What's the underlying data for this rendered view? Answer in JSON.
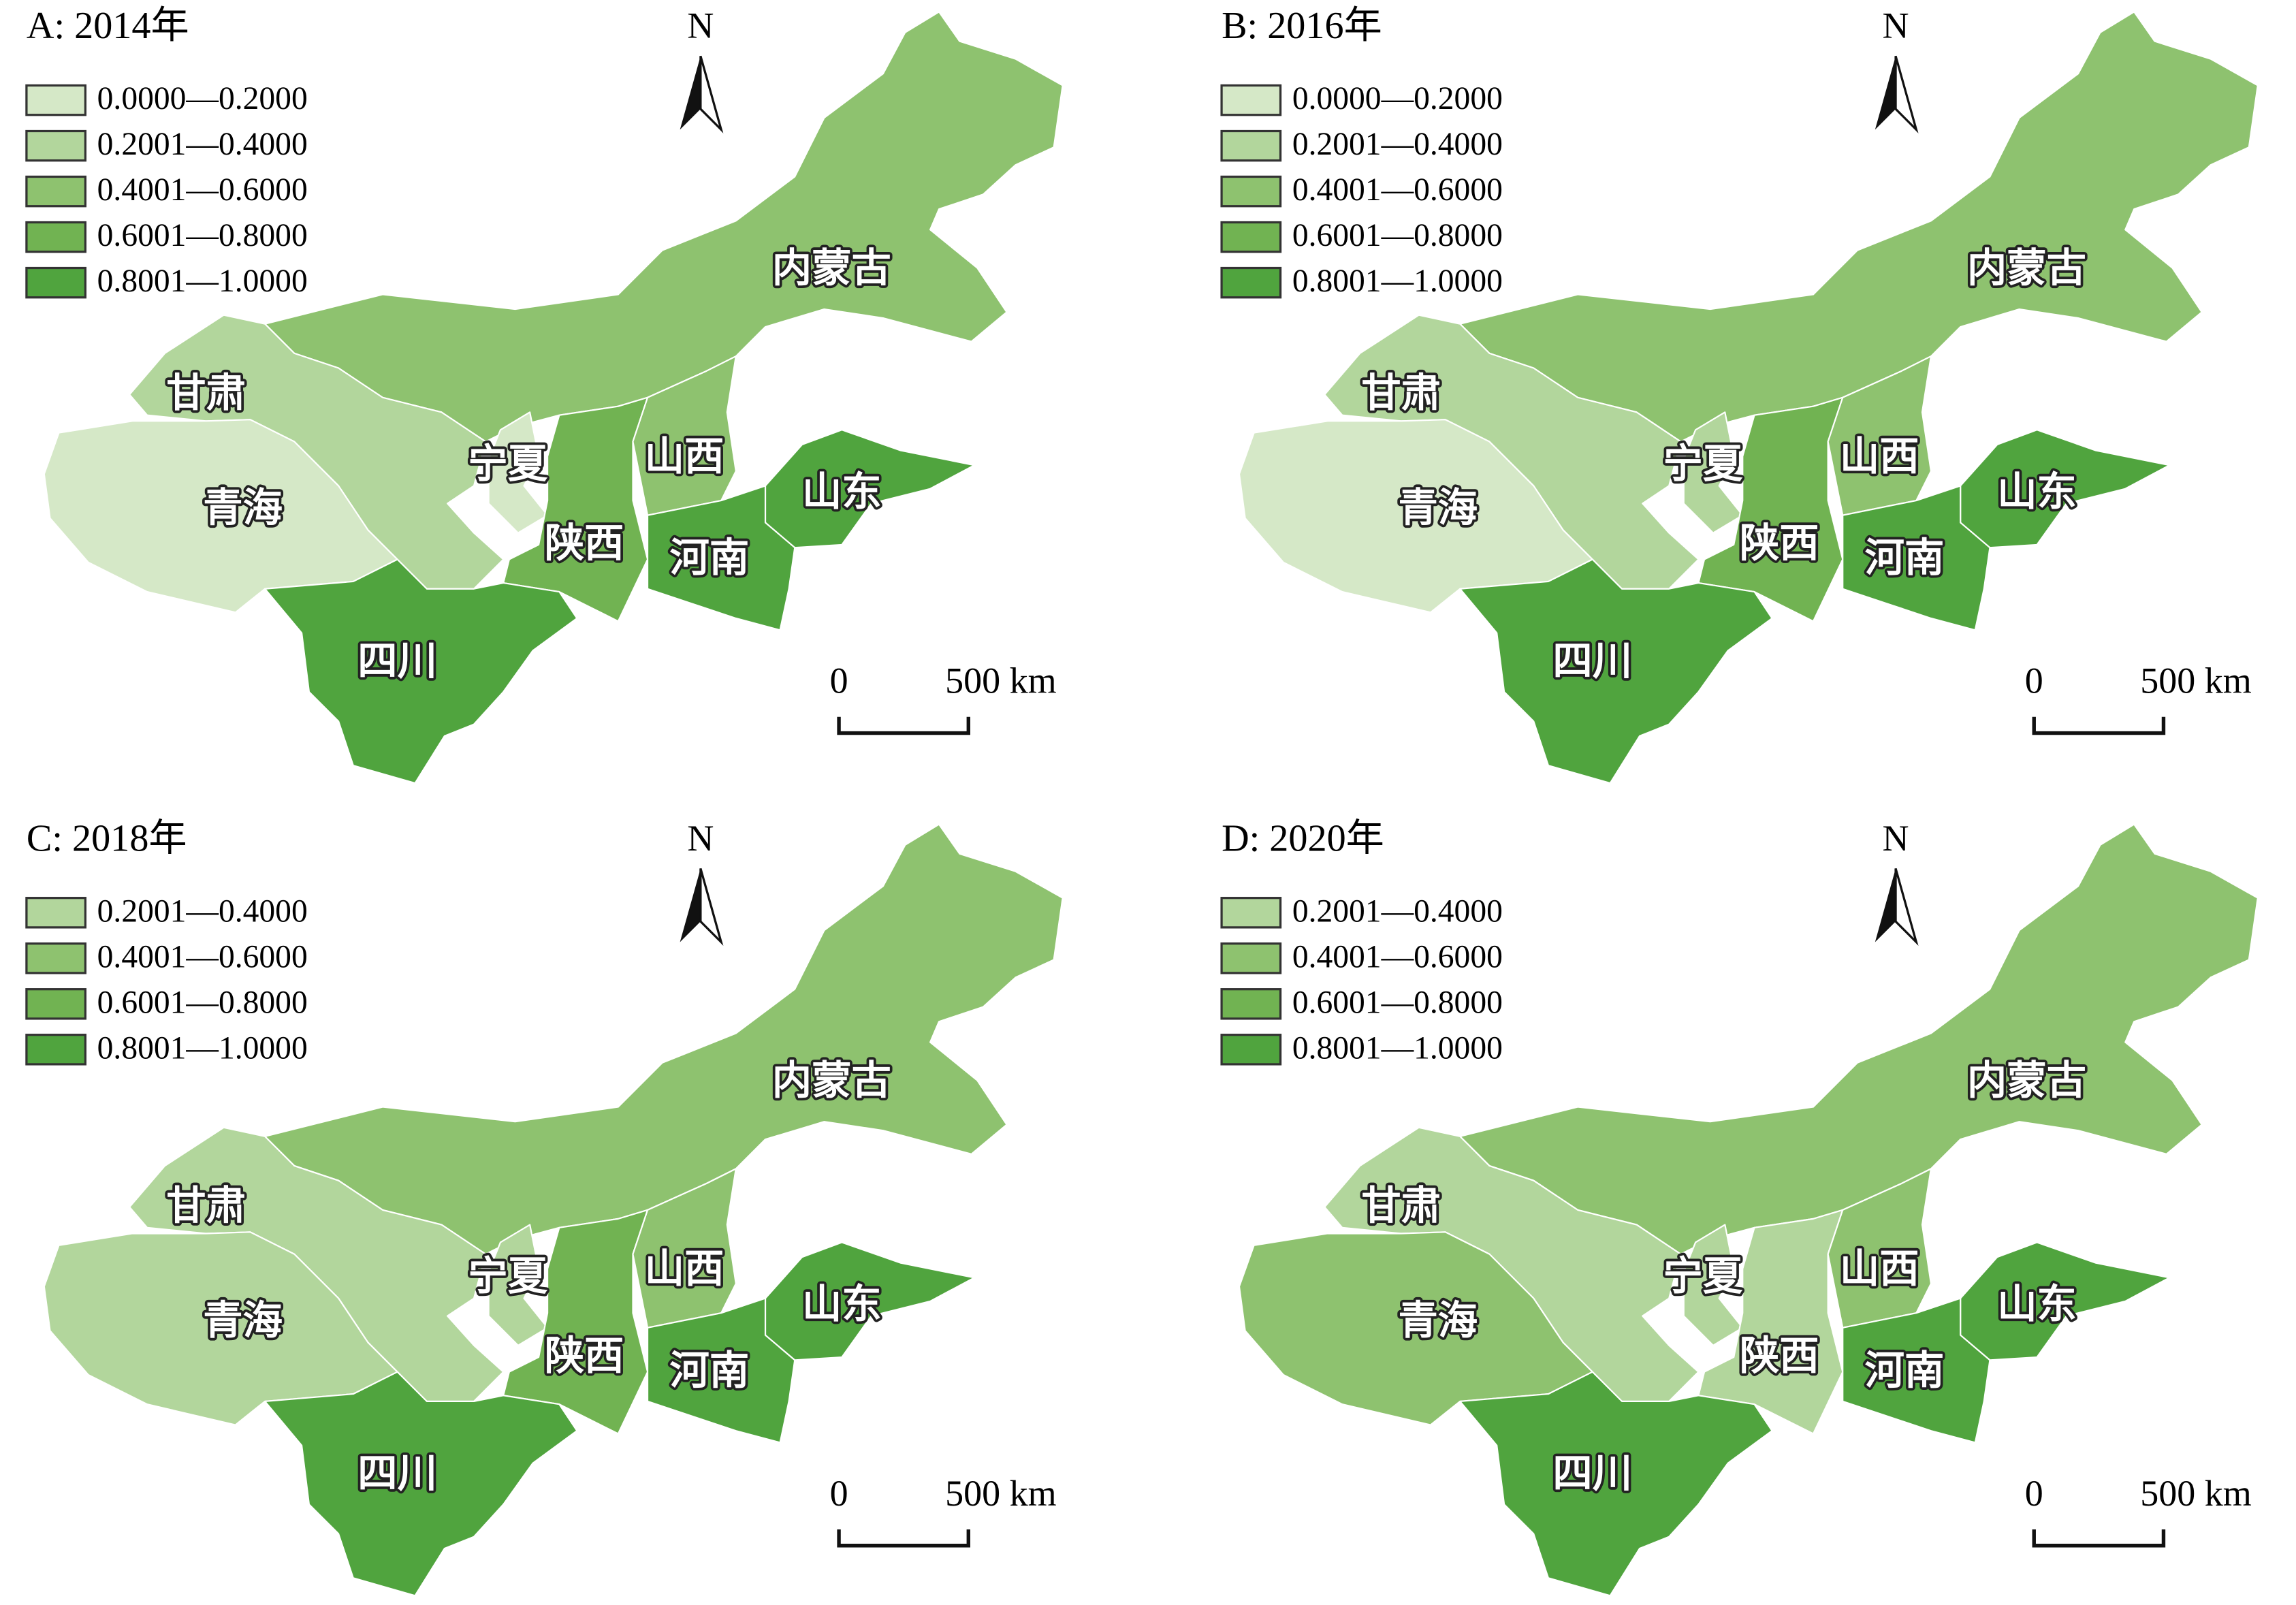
{
  "panels": [
    {
      "title": "A: 2014年",
      "north": "N",
      "scale_labels": [
        "0",
        "500 km"
      ],
      "legend": [
        {
          "label": "0.0000—0.2000",
          "color": "#d5e8c7"
        },
        {
          "label": "0.2001—0.4000",
          "color": "#b2d69c"
        },
        {
          "label": "0.4001—0.6000",
          "color": "#8ec26f"
        },
        {
          "label": "0.6001—0.8000",
          "color": "#71b352"
        },
        {
          "label": "0.8001—1.0000",
          "color": "#50a43e"
        }
      ],
      "regions": [
        {
          "name": "内蒙古",
          "color": "#8ec26f"
        },
        {
          "name": "甘肃",
          "color": "#b2d69c"
        },
        {
          "name": "青海",
          "color": "#d5e8c7"
        },
        {
          "name": "宁夏",
          "color": "#d5e8c7"
        },
        {
          "name": "陕西",
          "color": "#71b352"
        },
        {
          "name": "山西",
          "color": "#8ec26f"
        },
        {
          "name": "山东",
          "color": "#50a43e"
        },
        {
          "name": "河南",
          "color": "#50a43e"
        },
        {
          "name": "四川",
          "color": "#50a43e"
        }
      ]
    },
    {
      "title": "B: 2016年",
      "north": "N",
      "scale_labels": [
        "0",
        "500 km"
      ],
      "legend": [
        {
          "label": "0.0000—0.2000",
          "color": "#d5e8c7"
        },
        {
          "label": "0.2001—0.4000",
          "color": "#b2d69c"
        },
        {
          "label": "0.4001—0.6000",
          "color": "#8ec26f"
        },
        {
          "label": "0.6001—0.8000",
          "color": "#71b352"
        },
        {
          "label": "0.8001—1.0000",
          "color": "#50a43e"
        }
      ],
      "regions": [
        {
          "name": "内蒙古",
          "color": "#8ec26f"
        },
        {
          "name": "甘肃",
          "color": "#b2d69c"
        },
        {
          "name": "青海",
          "color": "#d5e8c7"
        },
        {
          "name": "宁夏",
          "color": "#b2d69c"
        },
        {
          "name": "陕西",
          "color": "#71b352"
        },
        {
          "name": "山西",
          "color": "#8ec26f"
        },
        {
          "name": "山东",
          "color": "#50a43e"
        },
        {
          "name": "河南",
          "color": "#50a43e"
        },
        {
          "name": "四川",
          "color": "#50a43e"
        }
      ]
    },
    {
      "title": "C: 2018年",
      "north": "N",
      "scale_labels": [
        "0",
        "500 km"
      ],
      "legend": [
        {
          "label": "0.2001—0.4000",
          "color": "#b2d69c"
        },
        {
          "label": "0.4001—0.6000",
          "color": "#8ec26f"
        },
        {
          "label": "0.6001—0.8000",
          "color": "#71b352"
        },
        {
          "label": "0.8001—1.0000",
          "color": "#50a43e"
        }
      ],
      "regions": [
        {
          "name": "内蒙古",
          "color": "#8ec26f"
        },
        {
          "name": "甘肃",
          "color": "#b2d69c"
        },
        {
          "name": "青海",
          "color": "#b2d69c"
        },
        {
          "name": "宁夏",
          "color": "#b2d69c"
        },
        {
          "name": "陕西",
          "color": "#71b352"
        },
        {
          "name": "山西",
          "color": "#8ec26f"
        },
        {
          "name": "山东",
          "color": "#50a43e"
        },
        {
          "name": "河南",
          "color": "#50a43e"
        },
        {
          "name": "四川",
          "color": "#50a43e"
        }
      ]
    },
    {
      "title": "D: 2020年",
      "north": "N",
      "scale_labels": [
        "0",
        "500 km"
      ],
      "legend": [
        {
          "label": "0.2001—0.4000",
          "color": "#b2d69c"
        },
        {
          "label": "0.4001—0.6000",
          "color": "#8ec26f"
        },
        {
          "label": "0.6001—0.8000",
          "color": "#71b352"
        },
        {
          "label": "0.8001—1.0000",
          "color": "#50a43e"
        }
      ],
      "regions": [
        {
          "name": "内蒙古",
          "color": "#8ec26f"
        },
        {
          "name": "甘肃",
          "color": "#b2d69c"
        },
        {
          "name": "青海",
          "color": "#8ec26f"
        },
        {
          "name": "宁夏",
          "color": "#b2d69c"
        },
        {
          "name": "陕西",
          "color": "#b2d69c"
        },
        {
          "name": "山西",
          "color": "#8ec26f"
        },
        {
          "name": "山东",
          "color": "#50a43e"
        },
        {
          "name": "河南",
          "color": "#50a43e"
        },
        {
          "name": "四川",
          "color": "#50a43e"
        }
      ]
    }
  ]
}
